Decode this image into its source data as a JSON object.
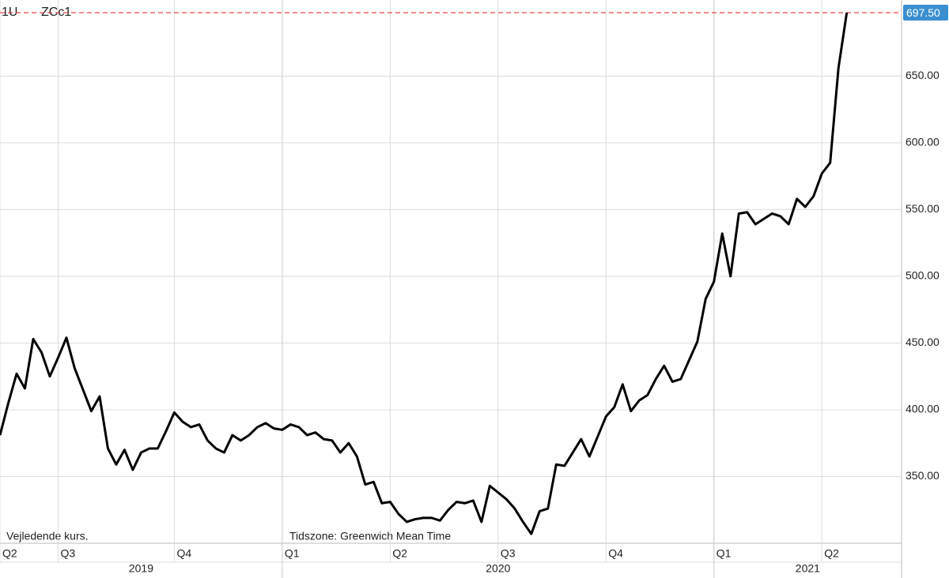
{
  "chart_data": {
    "type": "line",
    "title": "1U",
    "ticker": "ZCc1",
    "note_left": "Vejledende kurs.",
    "note_timezone": "Tidszone: Greenwich Mean Time",
    "series": [
      {
        "name": "ZCc1",
        "color": "#000000",
        "values": [
          381,
          405,
          427,
          416,
          453,
          443,
          425,
          439,
          454,
          431,
          415,
          399,
          410,
          371,
          359,
          370,
          355,
          368,
          371,
          371,
          384,
          398,
          391,
          387,
          389,
          377,
          371,
          368,
          381,
          377,
          381,
          387,
          390,
          386,
          385,
          389,
          387,
          381,
          383,
          378,
          377,
          368,
          375,
          365,
          344,
          346,
          330,
          331,
          322,
          316,
          318,
          319,
          319,
          317,
          325,
          331,
          330,
          332,
          316,
          343,
          338,
          333,
          326,
          316,
          307,
          324,
          326,
          359,
          358,
          368,
          378,
          365,
          380,
          395,
          402,
          419,
          399,
          407,
          411,
          423,
          433,
          421,
          423,
          437,
          451,
          483,
          496,
          532,
          500,
          547,
          548,
          539,
          543,
          547,
          545,
          539,
          558,
          552,
          560,
          577,
          585,
          656,
          697.5
        ]
      }
    ],
    "current_value": {
      "value": 697.5,
      "label": "697.50",
      "color": "#3a8fd0",
      "line_color": "#e03030"
    },
    "xlim": [
      0,
      108.6
    ],
    "xticks": [
      {
        "value": 0,
        "label": "Q2"
      },
      {
        "value": 7,
        "label": "Q3"
      },
      {
        "value": 21,
        "label": "Q4"
      },
      {
        "value": 34,
        "label": "Q1"
      },
      {
        "value": 47,
        "label": "Q2"
      },
      {
        "value": 60,
        "label": "Q3"
      },
      {
        "value": 73,
        "label": "Q4"
      },
      {
        "value": 86,
        "label": "Q1"
      },
      {
        "value": 99,
        "label": "Q2"
      }
    ],
    "years": [
      {
        "value": 0,
        "label": "2019"
      },
      {
        "value": 34,
        "label": "2020"
      },
      {
        "value": 86,
        "label": "2021"
      }
    ],
    "ylim": [
      300,
      707
    ],
    "yticks": [
      {
        "value": 350,
        "label": "350.00"
      },
      {
        "value": 400,
        "label": "400.00"
      },
      {
        "value": 450,
        "label": "450.00"
      },
      {
        "value": 500,
        "label": "500.00"
      },
      {
        "value": 550,
        "label": "550.00"
      },
      {
        "value": 600,
        "label": "600.00"
      },
      {
        "value": 650,
        "label": "650.00"
      }
    ],
    "grid": true
  }
}
